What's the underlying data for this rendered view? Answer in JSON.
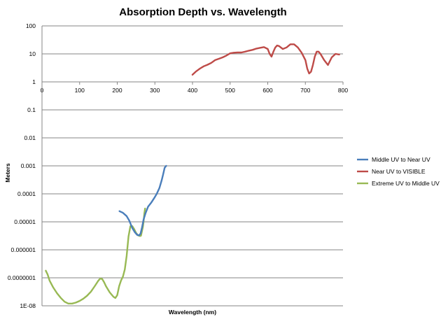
{
  "chart_data": {
    "type": "line",
    "title": "Absorption Depth vs. Wavelength",
    "xlabel": "Wavelength (nm)",
    "ylabel": "Meters",
    "xlim": [
      0,
      800
    ],
    "ylim": [
      1e-08,
      100
    ],
    "yscale": "log",
    "x_ticks": [
      0,
      100,
      200,
      300,
      400,
      500,
      600,
      700,
      800
    ],
    "x_tick_labels": [
      "0",
      "100",
      "200",
      "300",
      "400",
      "500",
      "600",
      "700",
      "800"
    ],
    "y_ticks": [
      100,
      10,
      1,
      0.1,
      0.01,
      0.001,
      0.0001,
      1e-05,
      1e-06,
      1e-07,
      1e-08
    ],
    "y_tick_labels": [
      "100",
      "10",
      "1",
      "0.1",
      "0.01",
      "0.001",
      "0.0001",
      "0.00001",
      "0.000001",
      "0.0000001",
      "1E-08"
    ],
    "grid": "horizontal",
    "legend_position": "right",
    "series": [
      {
        "name": "Middle UV to Near UV",
        "color": "#4a7ebb",
        "x": [
          206,
          215,
          225,
          232,
          240,
          247,
          253,
          258,
          262,
          266,
          270,
          275,
          282,
          290,
          298,
          305,
          312,
          318,
          322,
          326,
          330
        ],
        "y": [
          2.4e-05,
          2.1e-05,
          1.6e-05,
          1.1e-05,
          6e-06,
          4.2e-06,
          3.4e-06,
          3.3e-06,
          3.8e-06,
          6.5e-06,
          1.2e-05,
          2e-05,
          3.5e-05,
          4.8e-05,
          7e-05,
          0.0001,
          0.00016,
          0.0003,
          0.0005,
          0.00085,
          0.001
        ]
      },
      {
        "name": "Near UV to VISIBLE",
        "color": "#be4b48",
        "x": [
          400,
          410,
          420,
          430,
          440,
          450,
          460,
          470,
          480,
          490,
          500,
          510,
          520,
          530,
          540,
          550,
          560,
          570,
          580,
          590,
          600,
          605,
          610,
          615,
          620,
          625,
          630,
          640,
          650,
          660,
          670,
          680,
          690,
          700,
          705,
          710,
          715,
          720,
          725,
          730,
          735,
          740,
          750,
          760,
          770,
          780,
          790
        ],
        "y": [
          1.8,
          2.4,
          3,
          3.6,
          4.1,
          4.8,
          6,
          6.7,
          7.5,
          8.7,
          10.5,
          11,
          11.2,
          11.2,
          12,
          13,
          14,
          15.5,
          16.5,
          17.5,
          15,
          10,
          8,
          12,
          17,
          20,
          19,
          15,
          17,
          22,
          22,
          17,
          11,
          6,
          3,
          2,
          2.3,
          4,
          8,
          12,
          12,
          10,
          6,
          4,
          7.5,
          10,
          9.5
        ]
      },
      {
        "name": "Extreme UV to Middle UV",
        "color": "#98b954",
        "x": [
          10,
          15,
          20,
          30,
          40,
          50,
          60,
          70,
          80,
          90,
          100,
          110,
          120,
          130,
          140,
          150,
          155,
          160,
          165,
          170,
          180,
          190,
          195,
          200,
          205,
          210,
          215,
          220,
          225,
          230,
          235,
          240,
          245,
          250,
          255,
          260,
          263,
          265,
          268,
          270,
          272,
          274
        ],
        "y": [
          1.8e-07,
          1.3e-07,
          8e-08,
          4.5e-08,
          2.8e-08,
          1.9e-08,
          1.4e-08,
          1.2e-08,
          1.2e-08,
          1.3e-08,
          1.5e-08,
          1.8e-08,
          2.3e-08,
          3.2e-08,
          5e-08,
          8e-08,
          9.5e-08,
          9e-08,
          7e-08,
          5e-08,
          3e-08,
          2.1e-08,
          1.9e-08,
          2.4e-08,
          5e-08,
          8e-08,
          1.1e-07,
          2e-07,
          6e-07,
          3e-06,
          7e-06,
          7e-06,
          5.5e-06,
          4e-06,
          3.3e-06,
          3.1e-06,
          3.2e-06,
          4.2e-06,
          6.5e-06,
          1e-05,
          2e-05,
          3e-05
        ]
      }
    ]
  }
}
